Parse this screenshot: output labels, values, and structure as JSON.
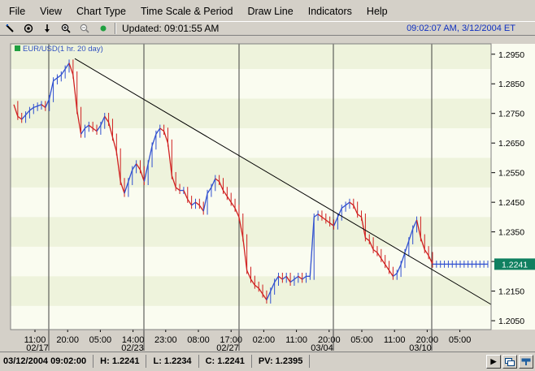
{
  "menu": [
    "File",
    "View",
    "Chart Type",
    "Time Scale & Period",
    "Draw Line",
    "Indicators",
    "Help"
  ],
  "toolbar": {
    "icons": [
      "pen-icon",
      "target-icon",
      "arrow-down-icon",
      "zoom-in-icon",
      "zoom-out-icon",
      "status-dot-icon"
    ],
    "updated": "Updated: 09:01:55 AM",
    "clock": "09:02:07 AM, 3/12/2004 ET"
  },
  "legend": "EUR/USD(1 hr.  20 day)",
  "status": {
    "datetime": "03/12/2004 09:02:00",
    "high": "H: 1.2241",
    "low": "L: 1.2234",
    "close": "C: 1.2241",
    "pv": "PV: 1.2395"
  },
  "chart_data": {
    "type": "line",
    "title": "",
    "series": [
      {
        "name": "EUR/USD(1 hr.  20 day)",
        "color_up": "#3050d0",
        "color_down": "#d02020"
      }
    ],
    "y_ticks": [
      "1.2950",
      "1.2850",
      "1.2750",
      "1.2650",
      "1.2550",
      "1.2450",
      "1.2350",
      "1.2250",
      "1.2150",
      "1.2050"
    ],
    "ylim": [
      1.202,
      1.2985
    ],
    "x_ticks": [
      "11:00",
      "20:00",
      "05:00",
      "14:00",
      "23:00",
      "08:00",
      "17:00",
      "02:00",
      "11:00",
      "20:00",
      "05:00",
      "11:00",
      "20:00",
      "05:00"
    ],
    "date_labels": [
      "02/17",
      "02/23",
      "02/27",
      "03/04",
      "03/10"
    ],
    "last_value": "1.2241",
    "trendline": {
      "start": 1.2935,
      "end": 1.2105
    },
    "x": [
      0,
      1,
      2,
      3,
      4,
      5,
      6,
      7,
      8,
      9,
      10,
      11,
      12,
      13,
      14,
      15,
      16,
      17,
      18,
      19,
      20,
      21,
      22,
      23,
      24,
      25,
      26,
      27,
      28,
      29,
      30,
      31,
      32,
      33,
      34,
      35,
      36,
      37,
      38,
      39,
      40,
      41,
      42,
      43,
      44,
      45,
      46,
      47,
      48,
      49,
      50,
      51,
      52,
      53,
      54,
      55,
      56,
      57,
      58,
      59,
      60,
      61,
      62,
      63,
      64,
      65,
      66,
      67,
      68,
      69,
      70,
      71,
      72,
      73,
      74,
      75,
      76,
      77,
      78,
      79,
      80,
      81,
      82,
      83,
      84,
      85,
      86,
      87,
      88,
      89,
      90,
      91,
      92,
      93,
      94,
      95,
      96,
      97,
      98,
      99,
      100,
      101,
      102,
      103,
      104,
      105,
      106,
      107,
      108,
      109,
      110,
      111,
      112,
      113,
      114,
      115,
      116,
      117,
      118,
      119,
      120
    ],
    "close": [
      1.278,
      1.274,
      1.273,
      1.2745,
      1.276,
      1.277,
      1.2775,
      1.278,
      1.277,
      1.28,
      1.286,
      1.287,
      1.288,
      1.29,
      1.292,
      1.288,
      1.276,
      1.268,
      1.27,
      1.271,
      1.27,
      1.269,
      1.271,
      1.274,
      1.272,
      1.267,
      1.262,
      1.252,
      1.248,
      1.252,
      1.256,
      1.258,
      1.256,
      1.252,
      1.258,
      1.264,
      1.268,
      1.27,
      1.269,
      1.265,
      1.254,
      1.25,
      1.249,
      1.249,
      1.246,
      1.244,
      1.245,
      1.244,
      1.242,
      1.248,
      1.25,
      1.253,
      1.252,
      1.249,
      1.247,
      1.245,
      1.243,
      1.24,
      1.233,
      1.222,
      1.219,
      1.217,
      1.216,
      1.214,
      1.212,
      1.215,
      1.218,
      1.22,
      1.219,
      1.22,
      1.218,
      1.219,
      1.22,
      1.219,
      1.22,
      1.22,
      1.24,
      1.241,
      1.24,
      1.239,
      1.238,
      1.237,
      1.24,
      1.243,
      1.244,
      1.245,
      1.244,
      1.241,
      1.24,
      1.233,
      1.232,
      1.229,
      1.228,
      1.226,
      1.224,
      1.222,
      1.22,
      1.221,
      1.224,
      1.228,
      1.232,
      1.236,
      1.239,
      1.233,
      1.229,
      1.227,
      1.2241,
      1.2241,
      1.2241,
      1.2241,
      1.2241,
      1.2241,
      1.2241,
      1.2241,
      1.2241,
      1.2241,
      1.2241,
      1.2241,
      1.2241,
      1.2241,
      1.2241
    ]
  }
}
